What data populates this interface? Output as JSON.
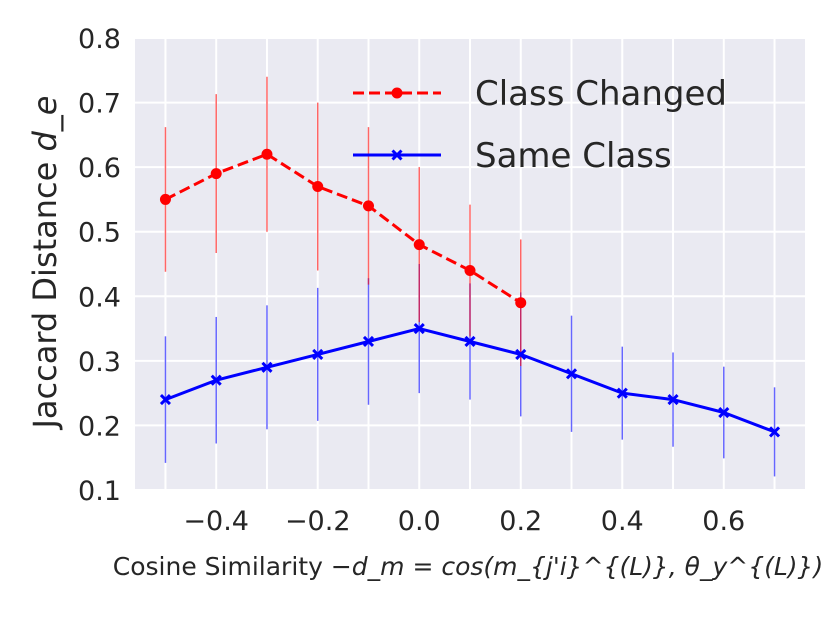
{
  "chart_data": {
    "type": "line",
    "xlabel_prefix": "Cosine Similarity ",
    "xlabel_math": "−d_m = cos(m_{j'i}^{(L)}, θ_y^{(L)})",
    "ylabel_prefix": "Jaccard Distance ",
    "ylabel_math": "d_e",
    "xlim": [
      -0.56,
      0.76
    ],
    "ylim": [
      0.1,
      0.8
    ],
    "x_ticks": [
      -0.4,
      -0.2,
      0.0,
      0.2,
      0.4,
      0.6
    ],
    "x_tick_labels": [
      "−0.4",
      "−0.2",
      "0.0",
      "0.2",
      "0.4",
      "0.6"
    ],
    "y_ticks": [
      0.1,
      0.2,
      0.3,
      0.4,
      0.5,
      0.6,
      0.7,
      0.8
    ],
    "y_tick_labels": [
      "0.1",
      "0.2",
      "0.3",
      "0.4",
      "0.5",
      "0.6",
      "0.7",
      "0.8"
    ],
    "grid": true,
    "legend_position": "top-right",
    "series": [
      {
        "name": "Class Changed",
        "color": "#ff0000",
        "line_style": "dashed",
        "marker": "circle",
        "x": [
          -0.5,
          -0.4,
          -0.3,
          -0.2,
          -0.1,
          0.0,
          0.1,
          0.2
        ],
        "y": [
          0.55,
          0.59,
          0.62,
          0.57,
          0.54,
          0.48,
          0.44,
          0.39
        ],
        "error": [
          0.112,
          0.123,
          0.12,
          0.13,
          0.122,
          0.12,
          0.102,
          0.098
        ]
      },
      {
        "name": "Same Class",
        "color": "#0000ff",
        "line_style": "solid",
        "marker": "x",
        "x": [
          -0.5,
          -0.4,
          -0.3,
          -0.2,
          -0.1,
          0.0,
          0.1,
          0.2,
          0.3,
          0.4,
          0.5,
          0.6,
          0.7
        ],
        "y": [
          0.24,
          0.27,
          0.29,
          0.31,
          0.33,
          0.35,
          0.33,
          0.31,
          0.28,
          0.25,
          0.24,
          0.22,
          0.19
        ],
        "error": [
          0.098,
          0.098,
          0.096,
          0.103,
          0.098,
          0.1,
          0.09,
          0.096,
          0.09,
          0.072,
          0.073,
          0.071,
          0.069
        ]
      }
    ]
  }
}
